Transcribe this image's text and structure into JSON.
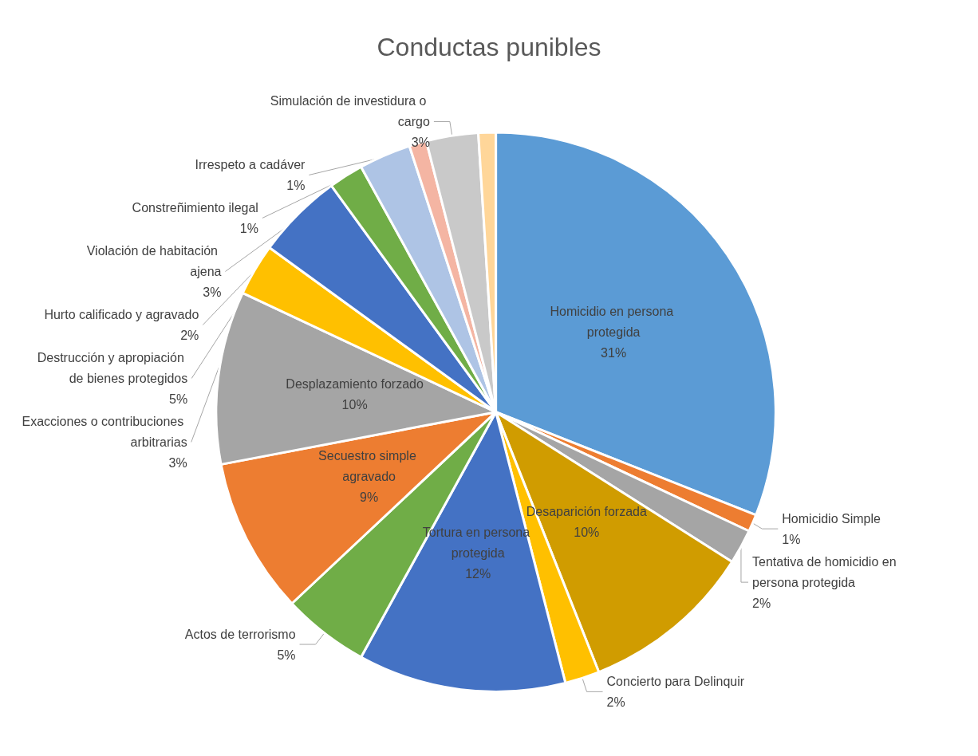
{
  "chart_data": {
    "type": "pie",
    "title": "Conductas punibles",
    "categories": [
      "Homicidio en persona protegida",
      "Homicidio Simple",
      "Tentativa de homicidio en persona protegida",
      "Desaparición forzada",
      "Concierto para Delinquir",
      "Tortura en persona protegida",
      "Actos de terrorismo",
      "Secuestro simple agravado",
      "Desplazamiento forzado",
      "Exacciones o contribuciones arbitrarias",
      "Destrucción y apropiación de bienes protegidos",
      "Hurto calificado y agravado",
      "Violación de habitación ajena",
      "Constreñimiento ilegal",
      "Simulación de investidura o cargo",
      "Irrespeto a cadáver"
    ],
    "values": [
      31,
      1,
      2,
      10,
      2,
      12,
      5,
      9,
      10,
      3,
      5,
      2,
      3,
      1,
      3,
      1
    ],
    "colors": [
      "#5b9bd5",
      "#ed7d31",
      "#a5a5a5",
      "#d09c00",
      "#ffc000",
      "#4472c4",
      "#70ad47",
      "#ed7d31",
      "#a5a5a5",
      "#ffc000",
      "#4472c4",
      "#70ad47",
      "#aec4e5",
      "#f4b5a3",
      "#c9c9c9",
      "#ffd699"
    ],
    "value_labels": [
      "31%",
      "1%",
      "2%",
      "10%",
      "2%",
      "12%",
      "5%",
      "9%",
      "10%",
      "3%",
      "5%",
      "2%",
      "3%",
      "1%",
      "3%",
      "1%"
    ],
    "legend": false
  }
}
